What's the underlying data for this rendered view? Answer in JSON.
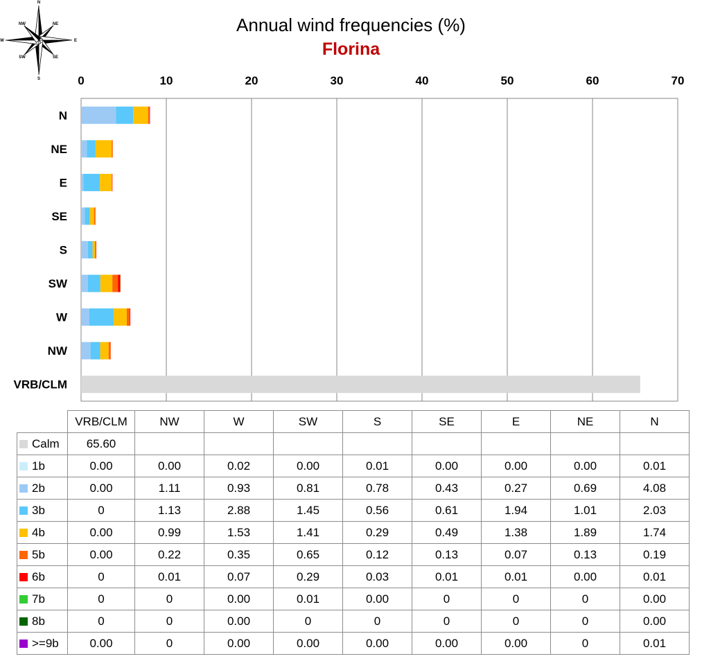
{
  "title": "Annual wind frequencies (%)",
  "subtitle": "Florina",
  "colors": {
    "title": "#000000",
    "subtitle": "#c00000",
    "grid": "#868686"
  },
  "compass": {
    "labels": [
      "N",
      "NE",
      "E",
      "SE",
      "S",
      "SW",
      "W",
      "NW"
    ]
  },
  "chart_data": {
    "type": "bar",
    "orientation": "horizontal",
    "stacked": true,
    "title": "Annual wind frequencies (%)",
    "subtitle": "Florina",
    "x_axis_position": "top",
    "xlim": [
      0,
      70
    ],
    "x_ticks": [
      0,
      10,
      20,
      30,
      40,
      50,
      60,
      70
    ],
    "grid": true,
    "categories_top_to_bottom": [
      "N",
      "NE",
      "E",
      "SE",
      "S",
      "SW",
      "W",
      "NW",
      "VRB/CLM"
    ],
    "series": [
      {
        "name": "Calm",
        "color": "#d9d9d9",
        "values": {
          "VRB/CLM": 65.6,
          "NW": null,
          "W": null,
          "SW": null,
          "S": null,
          "SE": null,
          "E": null,
          "NE": null,
          "N": null
        }
      },
      {
        "name": "1b",
        "color": "#cceefc",
        "values": {
          "VRB/CLM": 0.0,
          "NW": 0.0,
          "W": 0.02,
          "SW": 0.0,
          "S": 0.01,
          "SE": 0.0,
          "E": 0.0,
          "NE": 0.0,
          "N": 0.01
        }
      },
      {
        "name": "2b",
        "color": "#9dc9f5",
        "values": {
          "VRB/CLM": 0.0,
          "NW": 1.11,
          "W": 0.93,
          "SW": 0.81,
          "S": 0.78,
          "SE": 0.43,
          "E": 0.27,
          "NE": 0.69,
          "N": 4.08
        }
      },
      {
        "name": "3b",
        "color": "#5ac8fa",
        "values": {
          "VRB/CLM": 0,
          "NW": 1.13,
          "W": 2.88,
          "SW": 1.45,
          "S": 0.56,
          "SE": 0.61,
          "E": 1.94,
          "NE": 1.01,
          "N": 2.03
        }
      },
      {
        "name": "4b",
        "color": "#ffc000",
        "values": {
          "VRB/CLM": 0.0,
          "NW": 0.99,
          "W": 1.53,
          "SW": 1.41,
          "S": 0.29,
          "SE": 0.49,
          "E": 1.38,
          "NE": 1.89,
          "N": 1.74
        }
      },
      {
        "name": "5b",
        "color": "#ff6600",
        "values": {
          "VRB/CLM": 0.0,
          "NW": 0.22,
          "W": 0.35,
          "SW": 0.65,
          "S": 0.12,
          "SE": 0.13,
          "E": 0.07,
          "NE": 0.13,
          "N": 0.19
        }
      },
      {
        "name": "6b",
        "color": "#ff0000",
        "values": {
          "VRB/CLM": 0,
          "NW": 0.01,
          "W": 0.07,
          "SW": 0.29,
          "S": 0.03,
          "SE": 0.01,
          "E": 0.01,
          "NE": 0.0,
          "N": 0.01
        }
      },
      {
        "name": "7b",
        "color": "#33cc33",
        "values": {
          "VRB/CLM": 0,
          "NW": 0,
          "W": 0.0,
          "SW": 0.01,
          "S": 0.0,
          "SE": 0,
          "E": 0,
          "NE": 0,
          "N": 0.0
        }
      },
      {
        "name": "8b",
        "color": "#006400",
        "values": {
          "VRB/CLM": 0,
          "NW": 0,
          "W": 0.0,
          "SW": 0,
          "S": 0,
          "SE": 0,
          "E": 0,
          "NE": 0,
          "N": 0.0
        }
      },
      {
        "name": ">=9b",
        "color": "#9900cc",
        "values": {
          "VRB/CLM": 0.0,
          "NW": 0,
          "W": 0.0,
          "SW": 0.0,
          "S": 0.0,
          "SE": 0.0,
          "E": 0.0,
          "NE": 0,
          "N": 0.01
        }
      }
    ],
    "table": {
      "columns": [
        "VRB/CLM",
        "NW",
        "W",
        "SW",
        "S",
        "SE",
        "E",
        "NE",
        "N"
      ],
      "rows": [
        {
          "label": "Calm",
          "cells": [
            "65.60",
            "",
            "",
            "",
            "",
            "",
            "",
            "",
            ""
          ]
        },
        {
          "label": "1b",
          "cells": [
            "0.00",
            "0.00",
            "0.02",
            "0.00",
            "0.01",
            "0.00",
            "0.00",
            "0.00",
            "0.01"
          ]
        },
        {
          "label": "2b",
          "cells": [
            "0.00",
            "1.11",
            "0.93",
            "0.81",
            "0.78",
            "0.43",
            "0.27",
            "0.69",
            "4.08"
          ]
        },
        {
          "label": "3b",
          "cells": [
            "0",
            "1.13",
            "2.88",
            "1.45",
            "0.56",
            "0.61",
            "1.94",
            "1.01",
            "2.03"
          ]
        },
        {
          "label": "4b",
          "cells": [
            "0.00",
            "0.99",
            "1.53",
            "1.41",
            "0.29",
            "0.49",
            "1.38",
            "1.89",
            "1.74"
          ]
        },
        {
          "label": "5b",
          "cells": [
            "0.00",
            "0.22",
            "0.35",
            "0.65",
            "0.12",
            "0.13",
            "0.07",
            "0.13",
            "0.19"
          ]
        },
        {
          "label": "6b",
          "cells": [
            "0",
            "0.01",
            "0.07",
            "0.29",
            "0.03",
            "0.01",
            "0.01",
            "0.00",
            "0.01"
          ]
        },
        {
          "label": "7b",
          "cells": [
            "0",
            "0",
            "0.00",
            "0.01",
            "0.00",
            "0",
            "0",
            "0",
            "0.00"
          ]
        },
        {
          "label": "8b",
          "cells": [
            "0",
            "0",
            "0.00",
            "0",
            "0",
            "0",
            "0",
            "0",
            "0.00"
          ]
        },
        {
          "label": ">=9b",
          "cells": [
            "0.00",
            "0",
            "0.00",
            "0.00",
            "0.00",
            "0.00",
            "0.00",
            "0",
            "0.01"
          ]
        }
      ]
    }
  }
}
